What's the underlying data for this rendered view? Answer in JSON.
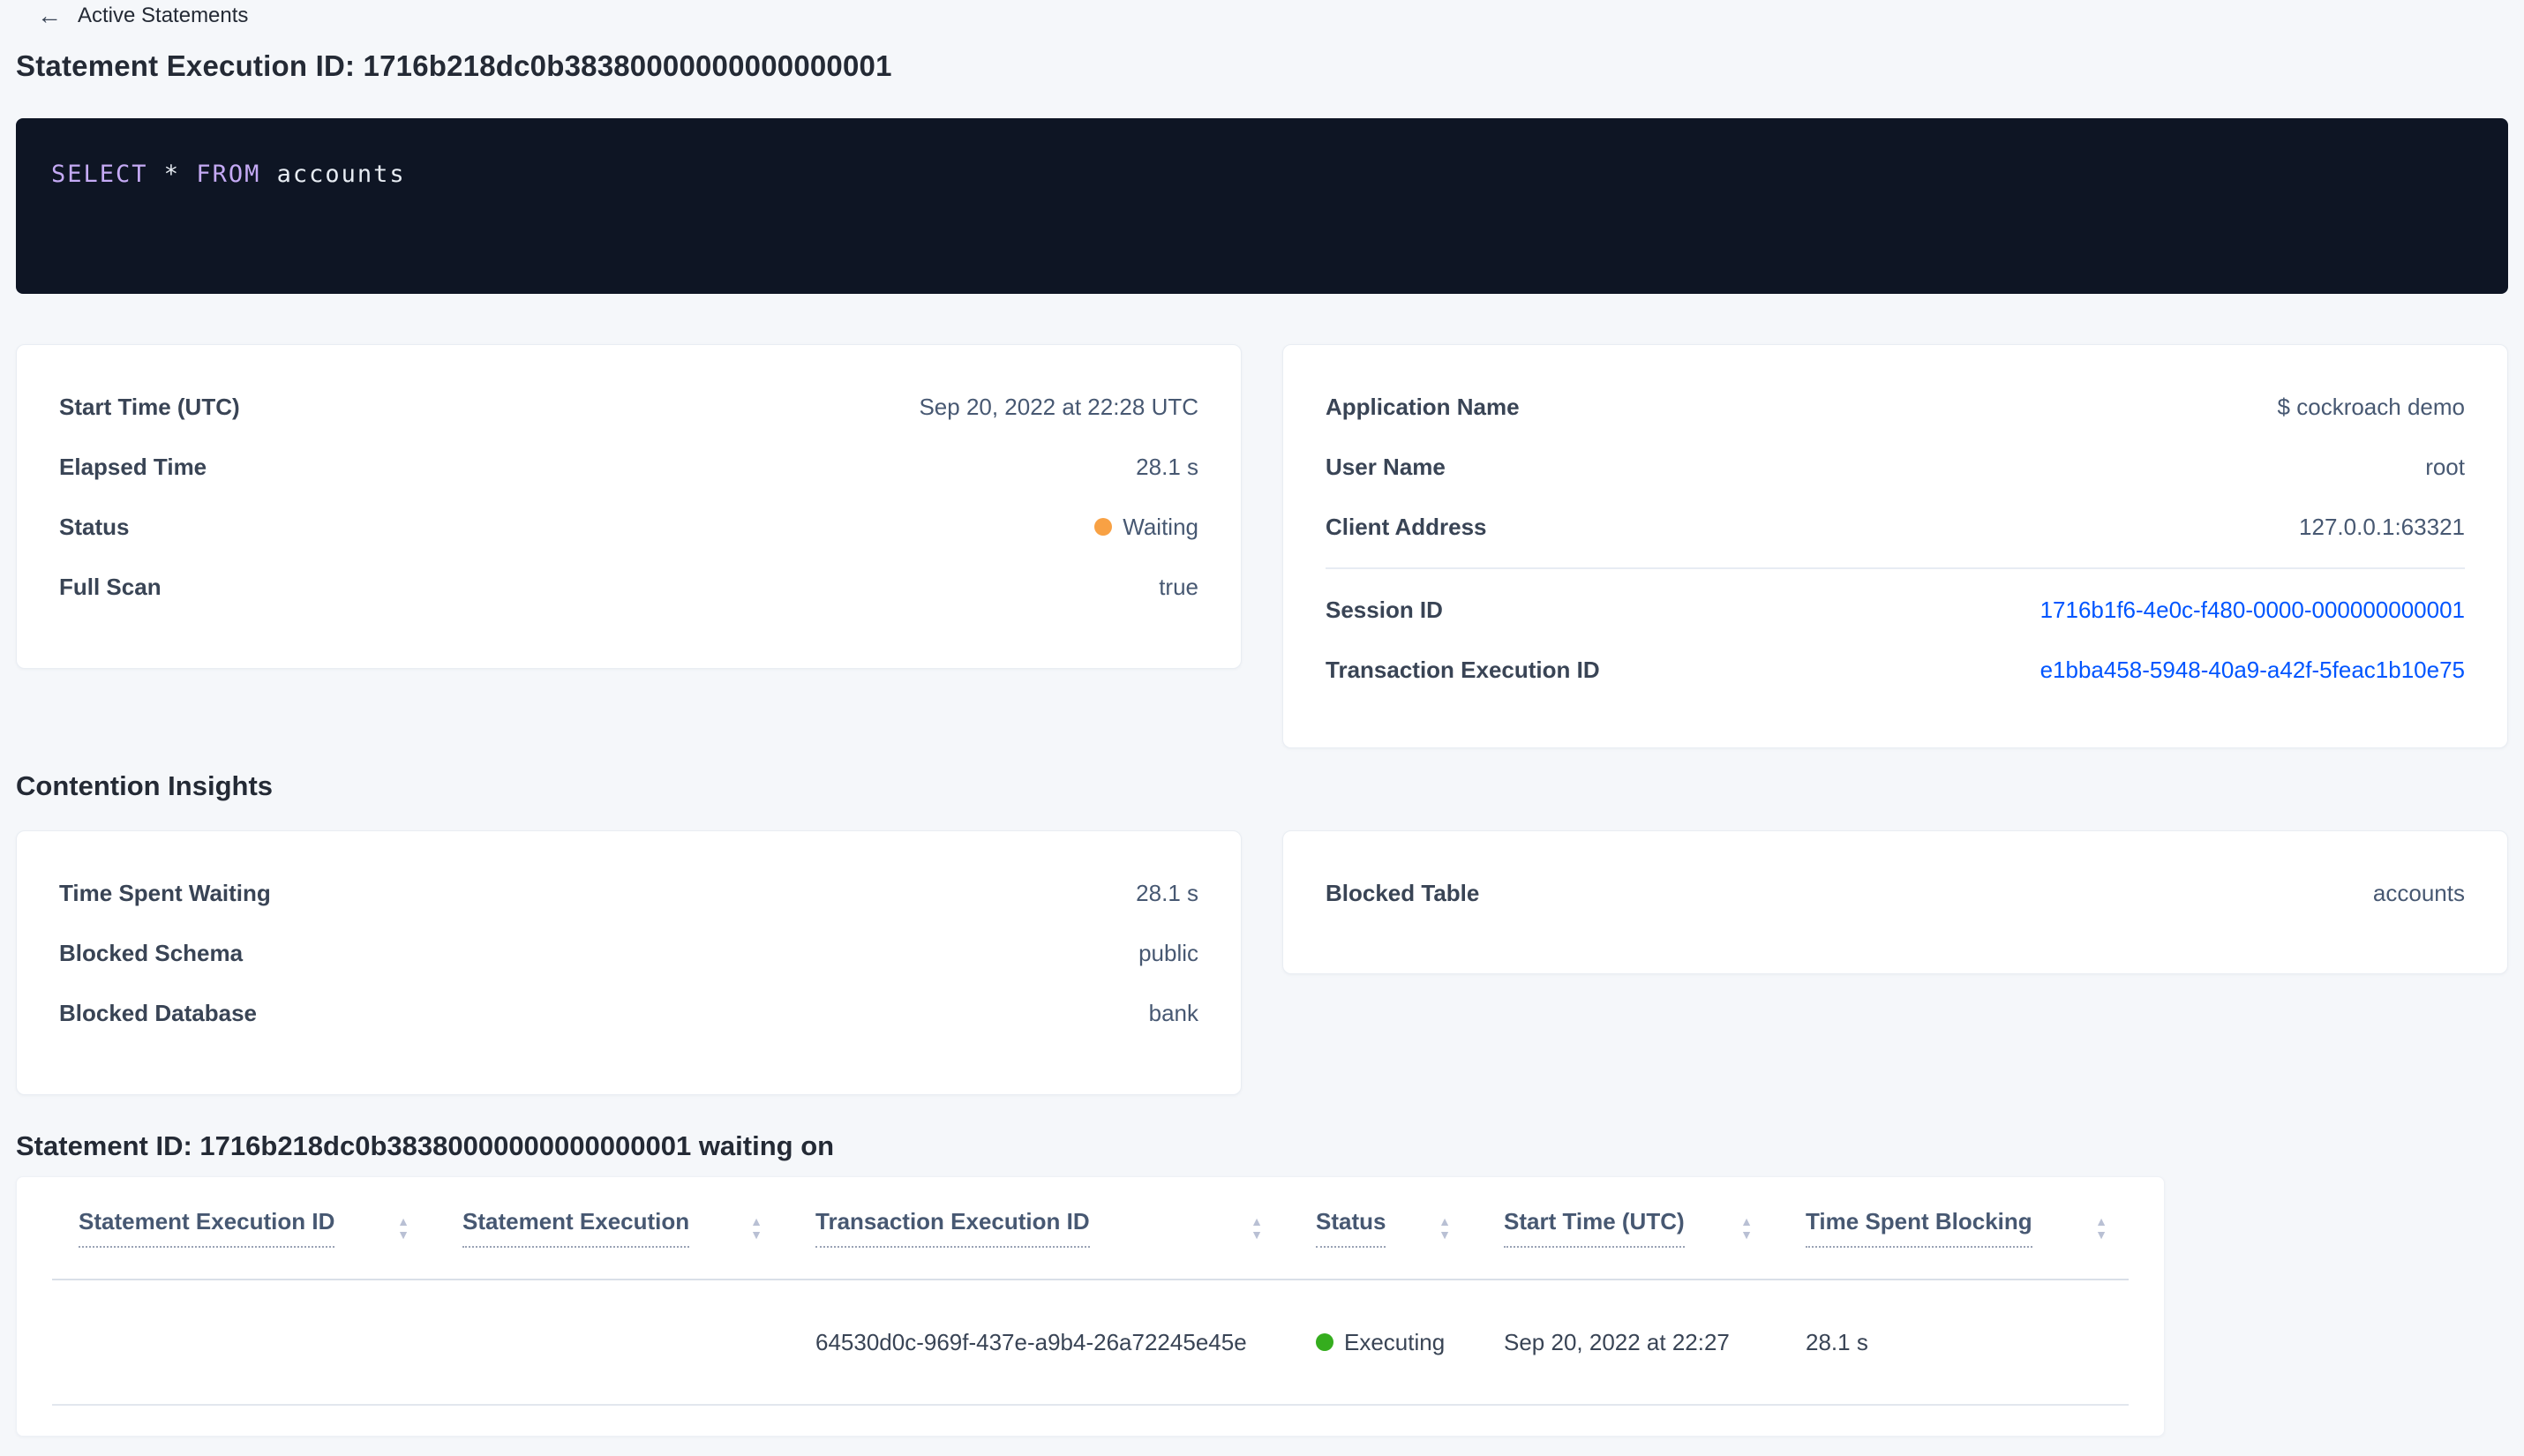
{
  "colors": {
    "page_background": "#f5f7fa",
    "link_blue": "#0055ff",
    "waiting_dot": "#f8a144",
    "executing_dot": "#35ad1e",
    "sql_box_background": "#0e1524",
    "sql_keyword": "#c5aaf5",
    "sql_plain_text": "#e7ecf3"
  },
  "icons": {
    "back": "←",
    "sort_asc": "▲",
    "sort_desc": "▼"
  },
  "header": {
    "back_label": "Active Statements",
    "title": "Statement Execution ID: 1716b218dc0b38380000000000000001"
  },
  "sql": {
    "tokens": [
      "SELECT",
      " * ",
      "FROM",
      " accounts"
    ]
  },
  "overview_card": {
    "rows": [
      {
        "label": "Start Time (UTC)",
        "value": "Sep 20, 2022 at 22:28 UTC"
      },
      {
        "label": "Elapsed Time",
        "value": "28.1 s"
      },
      {
        "label": "Status",
        "value": "Waiting"
      },
      {
        "label": "Full Scan",
        "value": "true"
      }
    ]
  },
  "session_card": {
    "rows": [
      {
        "label": "Application Name",
        "value": "$ cockroach demo"
      },
      {
        "label": "User Name",
        "value": "root"
      },
      {
        "label": "Client Address",
        "value": "127.0.0.1:63321"
      },
      {
        "label": "Session ID",
        "value": "1716b1f6-4e0c-f480-0000-000000000001"
      },
      {
        "label": "Transaction Execution ID",
        "value": "e1bba458-5948-40a9-a42f-5feac1b10e75"
      }
    ]
  },
  "contention": {
    "heading": "Contention Insights",
    "left_card": {
      "rows": [
        {
          "label": "Time Spent Waiting",
          "value": "28.1 s"
        },
        {
          "label": "Blocked Schema",
          "value": "public"
        },
        {
          "label": "Blocked Database",
          "value": "bank"
        }
      ]
    },
    "right_card": {
      "rows": [
        {
          "label": "Blocked Table",
          "value": "accounts"
        }
      ]
    }
  },
  "waiting_section": {
    "heading": "Statement ID: 1716b218dc0b38380000000000000001 waiting on",
    "table": {
      "columns": [
        {
          "label": "Statement Execution ID"
        },
        {
          "label": "Statement Execution"
        },
        {
          "label": "Transaction Execution ID"
        },
        {
          "label": "Status"
        },
        {
          "label": "Start Time (UTC)"
        },
        {
          "label": "Time Spent Blocking"
        }
      ],
      "rows": [
        {
          "statement_execution_id": "",
          "statement_execution": "",
          "transaction_execution_id": "64530d0c-969f-437e-a9b4-26a72245e45e",
          "status": "Executing",
          "start_time": "Sep 20, 2022 at 22:27",
          "time_spent_blocking": "28.1 s"
        }
      ]
    }
  }
}
